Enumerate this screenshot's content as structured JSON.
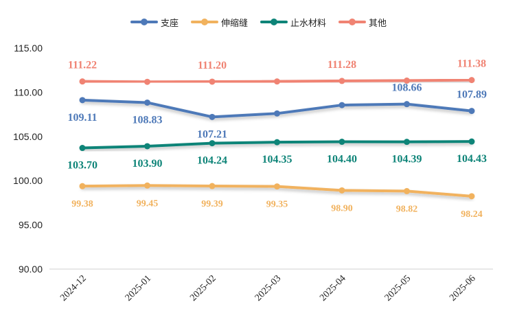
{
  "chart_data": {
    "type": "line",
    "title": "",
    "xlabel": "",
    "ylabel": "",
    "categories": [
      "2024-12",
      "2025-01",
      "2025-02",
      "2025-03",
      "2025-04",
      "2025-05",
      "2025-06"
    ],
    "ylim": [
      90,
      115
    ],
    "yticks": [
      "90.00",
      "95.00",
      "100.00",
      "105.00",
      "110.00",
      "115.00"
    ],
    "grid": false,
    "legend_position": "top-center",
    "series": [
      {
        "name": "支座",
        "color": "#4E79B8",
        "values": [
          109.11,
          108.83,
          107.21,
          107.6,
          108.55,
          108.66,
          107.89
        ],
        "labels": [
          "109.11",
          "108.83",
          "107.21",
          "",
          "",
          "108.66",
          "107.89"
        ]
      },
      {
        "name": "伸缩缝",
        "color": "#F1B25E",
        "values": [
          99.38,
          99.45,
          99.39,
          99.35,
          98.9,
          98.82,
          98.24
        ],
        "labels": [
          "99.38",
          "99.45",
          "99.39",
          "99.35",
          "98.90",
          "98.82",
          "98.24"
        ]
      },
      {
        "name": "止水材料",
        "color": "#0E8478",
        "values": [
          103.7,
          103.9,
          104.24,
          104.35,
          104.4,
          104.39,
          104.43
        ],
        "labels": [
          "103.70",
          "103.90",
          "104.24",
          "104.35",
          "104.40",
          "104.39",
          "104.43"
        ]
      },
      {
        "name": "其他",
        "color": "#F08373",
        "values": [
          111.22,
          111.18,
          111.2,
          111.22,
          111.28,
          111.32,
          111.38
        ],
        "labels": [
          "111.22",
          "",
          "111.20",
          "",
          "111.28",
          "",
          "111.38"
        ]
      }
    ]
  }
}
